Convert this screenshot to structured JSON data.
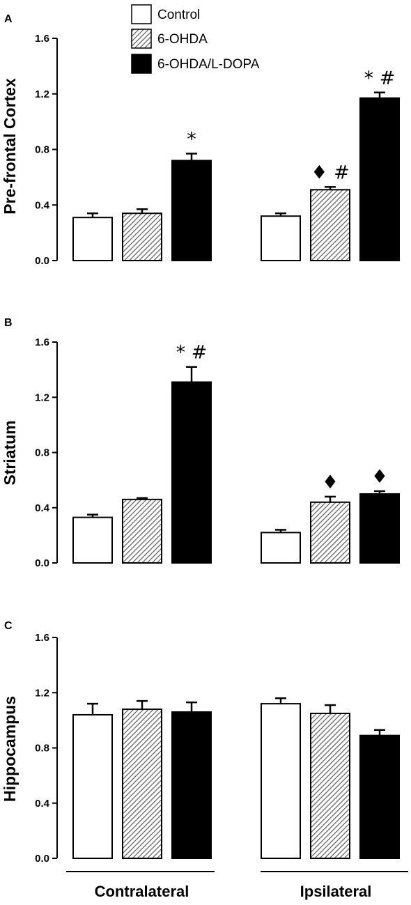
{
  "colors": {
    "control": "#ffffff",
    "ohda_hatch": "#5a5a5a",
    "ldopa": "#000000",
    "axis": "#000000"
  },
  "legend": {
    "items": [
      {
        "label": "Control",
        "fill": "open"
      },
      {
        "label": "6-OHDA",
        "fill": "hatched"
      },
      {
        "label": "6-OHDA/L-DOPA",
        "fill": "solid"
      }
    ]
  },
  "groups": [
    "Contralateral",
    "Ipsilateral"
  ],
  "chart_data": [
    {
      "type": "bar",
      "panel": "A",
      "ylabel": "Pre-frontal Cortex",
      "ylim": [
        0,
        1.6
      ],
      "yticks": [
        "0.0",
        "0.4",
        "0.8",
        "1.2",
        "1.6"
      ],
      "categories": [
        "Contralateral",
        "Ipsilateral"
      ],
      "series": [
        {
          "name": "Control",
          "values": [
            0.31,
            0.32
          ],
          "errors": [
            0.03,
            0.02
          ],
          "annotations": [
            "",
            ""
          ]
        },
        {
          "name": "6-OHDA",
          "values": [
            0.34,
            0.51
          ],
          "errors": [
            0.03,
            0.02
          ],
          "annotations": [
            "",
            "♦ #"
          ]
        },
        {
          "name": "6-OHDA/L-DOPA",
          "values": [
            0.72,
            1.17
          ],
          "errors": [
            0.05,
            0.04
          ],
          "annotations": [
            "*",
            "* #"
          ]
        }
      ]
    },
    {
      "type": "bar",
      "panel": "B",
      "ylabel": "Striatum",
      "ylim": [
        0,
        1.6
      ],
      "yticks": [
        "0.0",
        "0.4",
        "0.8",
        "1.2",
        "1.6"
      ],
      "categories": [
        "Contralateral",
        "Ipsilateral"
      ],
      "series": [
        {
          "name": "Control",
          "values": [
            0.33,
            0.22
          ],
          "errors": [
            0.02,
            0.02
          ],
          "annotations": [
            "",
            ""
          ]
        },
        {
          "name": "6-OHDA",
          "values": [
            0.46,
            0.44
          ],
          "errors": [
            0.01,
            0.04
          ],
          "annotations": [
            "",
            "♦"
          ]
        },
        {
          "name": "6-OHDA/L-DOPA",
          "values": [
            1.31,
            0.5
          ],
          "errors": [
            0.11,
            0.02
          ],
          "annotations": [
            "* #",
            "♦"
          ]
        }
      ]
    },
    {
      "type": "bar",
      "panel": "C",
      "ylabel": "Hippocampus",
      "ylim": [
        0,
        1.6
      ],
      "yticks": [
        "0.0",
        "0.4",
        "0.8",
        "1.2",
        "1.6"
      ],
      "categories": [
        "Contralateral",
        "Ipsilateral"
      ],
      "series": [
        {
          "name": "Control",
          "values": [
            1.04,
            1.12
          ],
          "errors": [
            0.08,
            0.04
          ],
          "annotations": [
            "",
            ""
          ]
        },
        {
          "name": "6-OHDA",
          "values": [
            1.08,
            1.05
          ],
          "errors": [
            0.06,
            0.06
          ],
          "annotations": [
            "",
            ""
          ]
        },
        {
          "name": "6-OHDA/L-DOPA",
          "values": [
            1.06,
            0.89
          ],
          "errors": [
            0.07,
            0.04
          ],
          "annotations": [
            "",
            ""
          ]
        }
      ]
    }
  ]
}
